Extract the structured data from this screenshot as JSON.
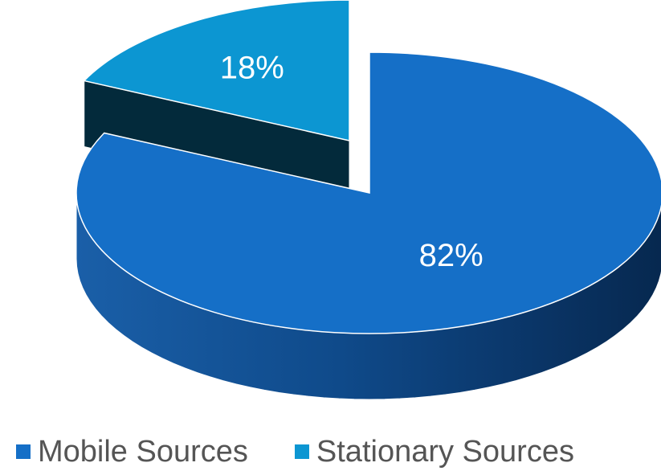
{
  "chart_data": {
    "type": "pie",
    "style": "3d-exploded",
    "title": "",
    "slices": [
      {
        "name": "Mobile Sources",
        "value": 82,
        "label": "82%",
        "color": "#156FC7"
      },
      {
        "name": "Stationary Sources",
        "value": 18,
        "label": "18%",
        "color": "#0C96D2"
      }
    ],
    "legend_position": "bottom"
  }
}
